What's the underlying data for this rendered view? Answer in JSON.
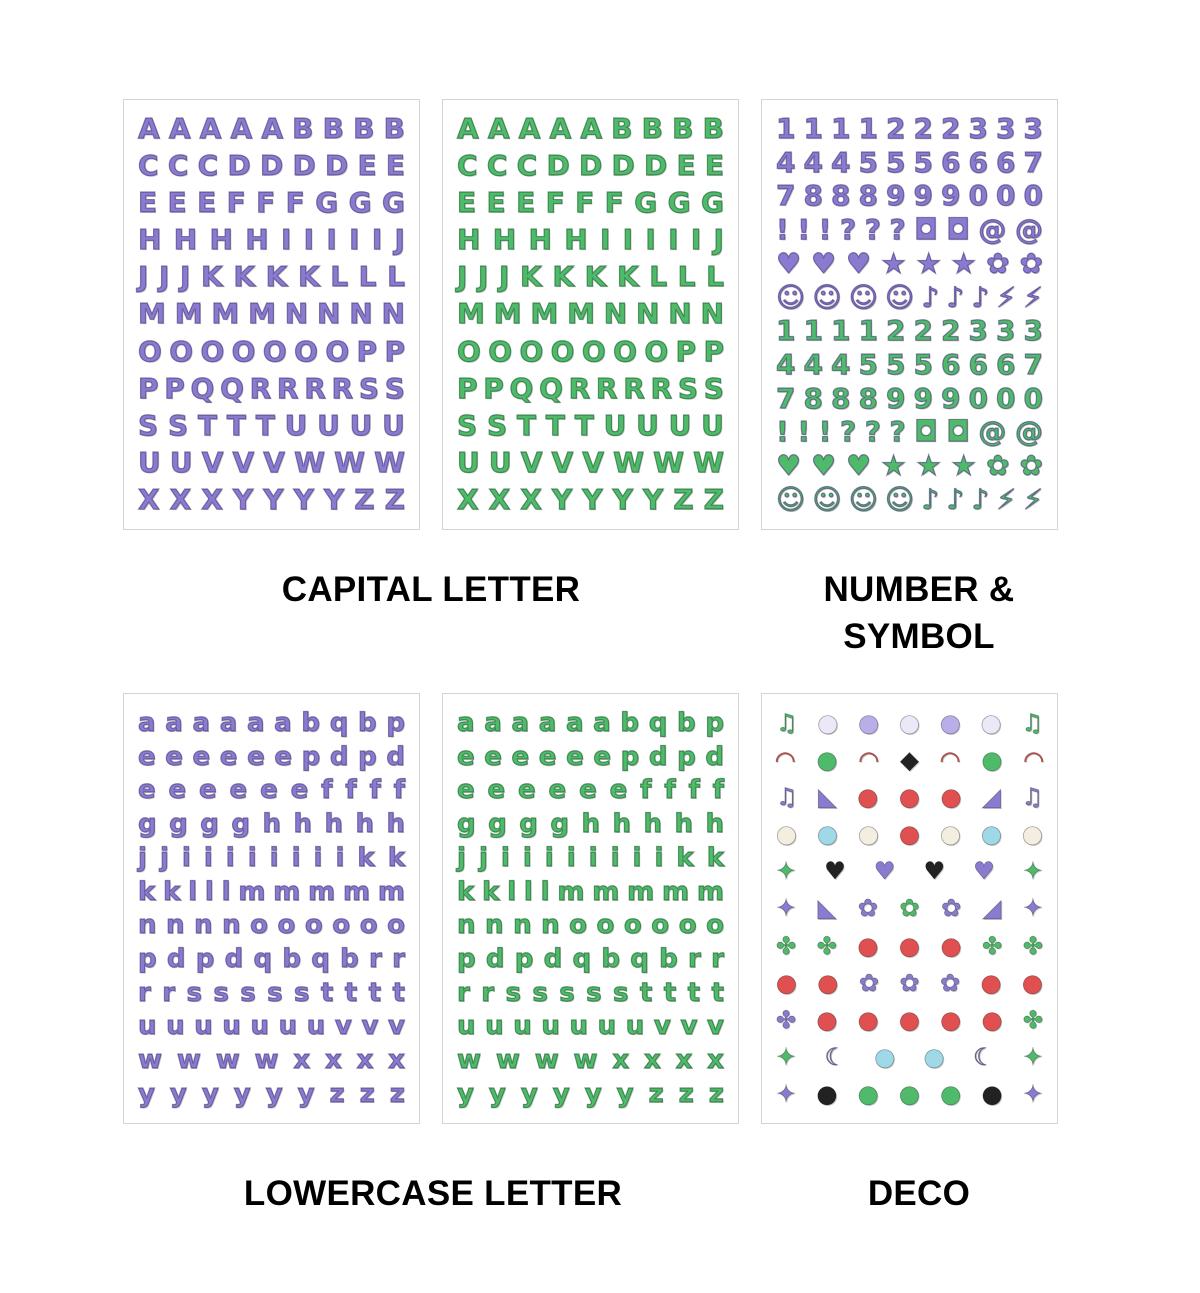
{
  "colors": {
    "purple": "#8a7bd0",
    "green": "#4fbb6a"
  },
  "labels": {
    "capital": "CAPITAL LETTER",
    "number_line1": "NUMBER &",
    "number_line2": "SYMBOL",
    "lowercase": "LOWERCASE LETTER",
    "deco": "DECO"
  },
  "sheets": {
    "capital_purple": {
      "color": "purple",
      "rows": [
        "AAAAABBBB",
        "CCCDDDDEE",
        "EEEFFFGGG",
        "HHHHIIIIIJ",
        "JJJKKKKLLL",
        "MMMMNNNN",
        "OOOOOOOPP",
        "PPQQRRRRSS",
        "SSTTTUUUU",
        "UUVVVWWW",
        "XXXYYYYZZ"
      ]
    },
    "capital_green": {
      "color": "green",
      "rows": [
        "AAAAABBBB",
        "CCCDDDDEE",
        "EEEFFFGGG",
        "HHHHIIIIIJ",
        "JJJKKKKLLL",
        "MMMMNNNN",
        "OOOOOOOPP",
        "PPQQRRRRSS",
        "SSTTTUUUU",
        "UUVVVWWW",
        "XXXYYYYZZ"
      ]
    },
    "number": {
      "rows": [
        {
          "color": "purple",
          "g": "1111222333"
        },
        {
          "color": "purple",
          "g": "4445556667"
        },
        {
          "color": "purple",
          "g": "7888999000"
        },
        {
          "color": "purple",
          "g": "!!!???◘◘@@"
        },
        {
          "color": "purple",
          "g": "♥♥♥★★★✿✿"
        },
        {
          "color": "purple",
          "g": "☺☺☺☺♪♪♪⚡⚡"
        },
        {
          "color": "green",
          "g": "1111222333"
        },
        {
          "color": "green",
          "g": "4445556667"
        },
        {
          "color": "green",
          "g": "7888999000"
        },
        {
          "color": "green",
          "g": "!!!???◘◘@@"
        },
        {
          "color": "green",
          "g": "♥♥♥★★★✿✿"
        },
        {
          "color": "green",
          "g": "☺☺☺☺♪♪♪⚡⚡"
        }
      ]
    },
    "lower_purple": {
      "color": "purple",
      "rows": [
        "aaaaaabqbp",
        "eeeeeepdpd",
        "eeeeeeffff",
        "gggghhhhh",
        "jjiiiiiiiikk",
        "kklllmmmmm",
        "nnnnoooooo",
        "pdpdqbqbrr",
        "rrssssstttt",
        "uuuuuuuvvv",
        "wwwwxxxx",
        "yyyyyyzzz"
      ]
    },
    "lower_green": {
      "color": "green",
      "rows": [
        "aaaaaabqbp",
        "eeeeeepdpd",
        "eeeeeeffff",
        "gggghhhhh",
        "jjiiiiiiiikk",
        "kklllmmmmm",
        "nnnnoooooo",
        "pdpdqbqbrr",
        "rrssssstttt",
        "uuuuuuuvvv",
        "wwwwxxxx",
        "yyyyyyzzz"
      ]
    },
    "deco": {
      "rows": [
        {
          "g": "♫●●●●●♫",
          "c": [
            "#4fbb6a",
            "#ece8f8",
            "#b9aee8",
            "#ece8f8",
            "#b9aee8",
            "#ece8f8",
            "#4fbb6a"
          ]
        },
        {
          "g": "◠●◠◆◠●◠",
          "c": [
            "#e8504a",
            "#4fbb6a",
            "#e8504a",
            "#222222",
            "#e8504a",
            "#4fbb6a",
            "#e8504a"
          ]
        },
        {
          "g": "♫◣●●●◢♫",
          "c": [
            "#8a7bd0",
            "#8a7bd0",
            "#e05050",
            "#e05050",
            "#e05050",
            "#8a7bd0",
            "#8a7bd0"
          ]
        },
        {
          "g": "●●●●●●●",
          "c": [
            "#f3eee0",
            "#9fd8e6",
            "#f3eee0",
            "#e05050",
            "#f3eee0",
            "#9fd8e6",
            "#f3eee0"
          ]
        },
        {
          "g": "✦♥♥♥♥✦",
          "c": [
            "#4fbb6a",
            "#222222",
            "#8a7bd0",
            "#222222",
            "#8a7bd0",
            "#4fbb6a"
          ]
        },
        {
          "g": "✦◣✿✿✿◢✦",
          "c": [
            "#8a7bd0",
            "#8a7bd0",
            "#8a7bd0",
            "#4fbb6a",
            "#8a7bd0",
            "#8a7bd0",
            "#8a7bd0"
          ]
        },
        {
          "g": "✤✤●●●✤✤",
          "c": [
            "#4fbb6a",
            "#4fbb6a",
            "#e05050",
            "#e05050",
            "#e05050",
            "#4fbb6a",
            "#4fbb6a"
          ]
        },
        {
          "g": "●●✿✿✿●●",
          "c": [
            "#e05050",
            "#e05050",
            "#8a7bd0",
            "#8a7bd0",
            "#8a7bd0",
            "#e05050",
            "#e05050"
          ]
        },
        {
          "g": "✤●●●●●✤",
          "c": [
            "#8a7bd0",
            "#e05050",
            "#e05050",
            "#e05050",
            "#e05050",
            "#e05050",
            "#4fbb6a"
          ]
        },
        {
          "g": "✦☾●●☾✦",
          "c": [
            "#4fbb6a",
            "#8a7bd0",
            "#9fd8e6",
            "#9fd8e6",
            "#8a7bd0",
            "#4fbb6a"
          ]
        },
        {
          "g": "✦●●●●●✦",
          "c": [
            "#8a7bd0",
            "#222222",
            "#4fbb6a",
            "#4fbb6a",
            "#4fbb6a",
            "#222222",
            "#8a7bd0"
          ]
        }
      ]
    }
  }
}
